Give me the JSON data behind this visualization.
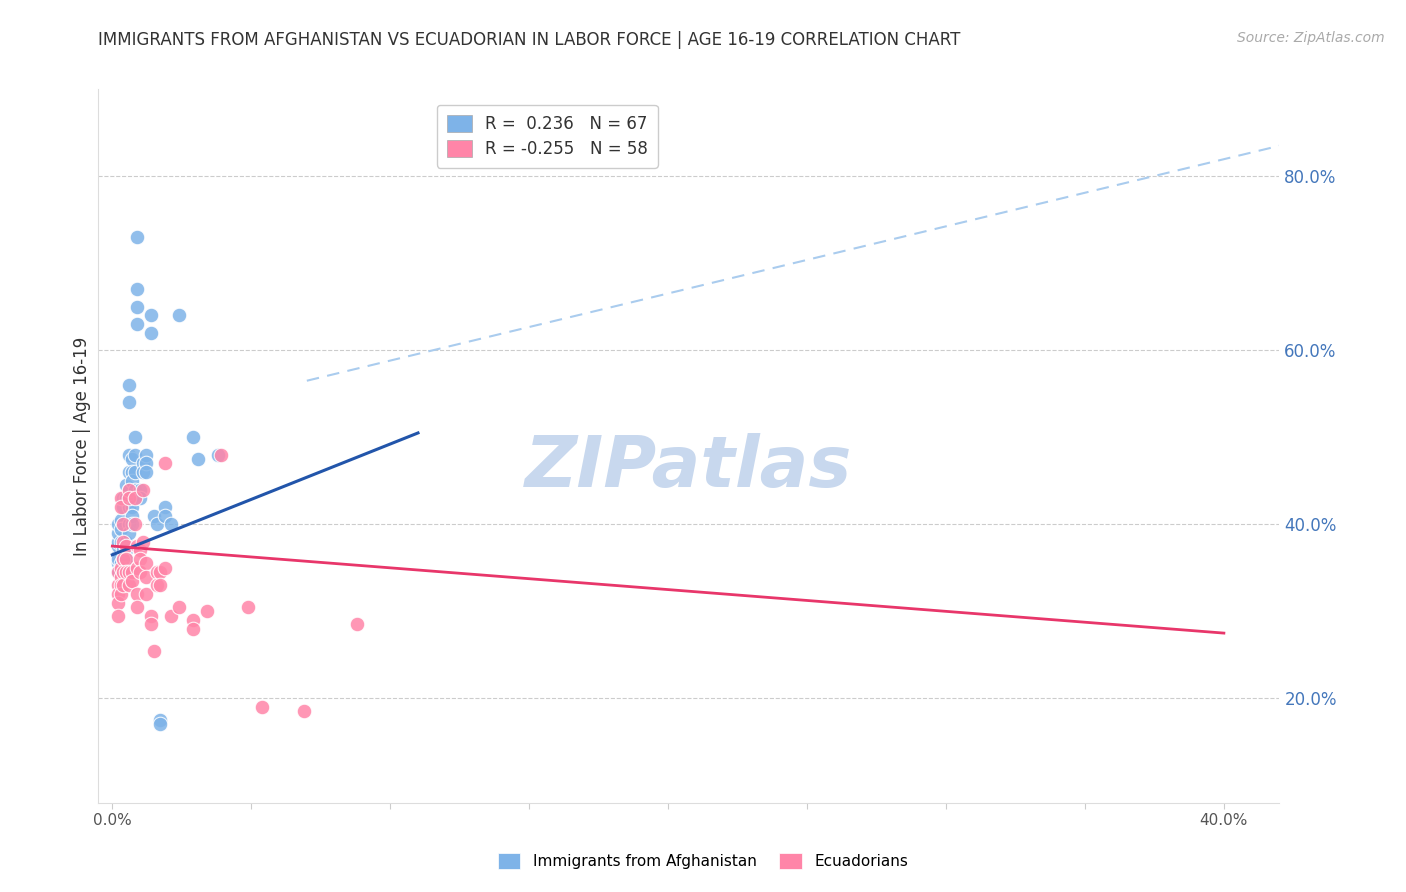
{
  "title": "IMMIGRANTS FROM AFGHANISTAN VS ECUADORIAN IN LABOR FORCE | AGE 16-19 CORRELATION CHART",
  "source": "Source: ZipAtlas.com",
  "ylabel": "In Labor Force | Age 16-19",
  "right_yticks": [
    0.2,
    0.4,
    0.6,
    0.8
  ],
  "right_yticklabels": [
    "20.0%",
    "40.0%",
    "60.0%",
    "80.0%"
  ],
  "xticks": [
    0.0,
    0.05,
    0.1,
    0.15,
    0.2,
    0.25,
    0.3,
    0.35,
    0.4
  ],
  "xlim": [
    -0.005,
    0.42
  ],
  "ylim": [
    0.08,
    0.9
  ],
  "afghanistan_color": "#7EB3E8",
  "ecuador_color": "#FF85A8",
  "blue_line_color": "#2255AA",
  "pink_line_color": "#E8366A",
  "dashed_line_color": "#AACCEE",
  "watermark_text": "ZIPatlas",
  "watermark_color": "#C8D8EE",
  "afghanistan_dots": [
    [
      0.002,
      0.365
    ],
    [
      0.002,
      0.355
    ],
    [
      0.002,
      0.375
    ],
    [
      0.002,
      0.38
    ],
    [
      0.002,
      0.39
    ],
    [
      0.002,
      0.4
    ],
    [
      0.002,
      0.345
    ],
    [
      0.002,
      0.36
    ],
    [
      0.003,
      0.405
    ],
    [
      0.003,
      0.38
    ],
    [
      0.003,
      0.395
    ],
    [
      0.003,
      0.355
    ],
    [
      0.004,
      0.42
    ],
    [
      0.004,
      0.43
    ],
    [
      0.004,
      0.375
    ],
    [
      0.004,
      0.36
    ],
    [
      0.004,
      0.345
    ],
    [
      0.004,
      0.37
    ],
    [
      0.005,
      0.445
    ],
    [
      0.005,
      0.43
    ],
    [
      0.005,
      0.38
    ],
    [
      0.005,
      0.37
    ],
    [
      0.005,
      0.36
    ],
    [
      0.005,
      0.35
    ],
    [
      0.006,
      0.56
    ],
    [
      0.006,
      0.54
    ],
    [
      0.006,
      0.48
    ],
    [
      0.006,
      0.46
    ],
    [
      0.006,
      0.44
    ],
    [
      0.006,
      0.42
    ],
    [
      0.006,
      0.4
    ],
    [
      0.006,
      0.39
    ],
    [
      0.007,
      0.475
    ],
    [
      0.007,
      0.46
    ],
    [
      0.007,
      0.45
    ],
    [
      0.007,
      0.43
    ],
    [
      0.007,
      0.42
    ],
    [
      0.007,
      0.41
    ],
    [
      0.007,
      0.4
    ],
    [
      0.008,
      0.5
    ],
    [
      0.008,
      0.48
    ],
    [
      0.008,
      0.46
    ],
    [
      0.008,
      0.44
    ],
    [
      0.009,
      0.73
    ],
    [
      0.009,
      0.67
    ],
    [
      0.009,
      0.65
    ],
    [
      0.009,
      0.63
    ],
    [
      0.01,
      0.44
    ],
    [
      0.01,
      0.43
    ],
    [
      0.011,
      0.47
    ],
    [
      0.011,
      0.46
    ],
    [
      0.012,
      0.48
    ],
    [
      0.012,
      0.47
    ],
    [
      0.012,
      0.46
    ],
    [
      0.014,
      0.64
    ],
    [
      0.014,
      0.62
    ],
    [
      0.015,
      0.41
    ],
    [
      0.016,
      0.4
    ],
    [
      0.017,
      0.175
    ],
    [
      0.017,
      0.17
    ],
    [
      0.019,
      0.42
    ],
    [
      0.019,
      0.41
    ],
    [
      0.021,
      0.4
    ],
    [
      0.024,
      0.64
    ],
    [
      0.029,
      0.5
    ],
    [
      0.031,
      0.475
    ],
    [
      0.038,
      0.48
    ]
  ],
  "ecuador_dots": [
    [
      0.002,
      0.345
    ],
    [
      0.002,
      0.33
    ],
    [
      0.002,
      0.32
    ],
    [
      0.002,
      0.31
    ],
    [
      0.002,
      0.295
    ],
    [
      0.003,
      0.43
    ],
    [
      0.003,
      0.42
    ],
    [
      0.003,
      0.35
    ],
    [
      0.003,
      0.34
    ],
    [
      0.003,
      0.33
    ],
    [
      0.003,
      0.32
    ],
    [
      0.004,
      0.4
    ],
    [
      0.004,
      0.38
    ],
    [
      0.004,
      0.36
    ],
    [
      0.004,
      0.345
    ],
    [
      0.004,
      0.33
    ],
    [
      0.005,
      0.375
    ],
    [
      0.005,
      0.36
    ],
    [
      0.005,
      0.345
    ],
    [
      0.006,
      0.44
    ],
    [
      0.006,
      0.43
    ],
    [
      0.006,
      0.345
    ],
    [
      0.006,
      0.33
    ],
    [
      0.007,
      0.345
    ],
    [
      0.007,
      0.335
    ],
    [
      0.008,
      0.43
    ],
    [
      0.008,
      0.4
    ],
    [
      0.009,
      0.375
    ],
    [
      0.009,
      0.35
    ],
    [
      0.009,
      0.32
    ],
    [
      0.009,
      0.305
    ],
    [
      0.01,
      0.37
    ],
    [
      0.01,
      0.36
    ],
    [
      0.01,
      0.345
    ],
    [
      0.011,
      0.44
    ],
    [
      0.011,
      0.38
    ],
    [
      0.012,
      0.355
    ],
    [
      0.012,
      0.34
    ],
    [
      0.012,
      0.32
    ],
    [
      0.014,
      0.295
    ],
    [
      0.014,
      0.285
    ],
    [
      0.015,
      0.255
    ],
    [
      0.016,
      0.345
    ],
    [
      0.016,
      0.33
    ],
    [
      0.017,
      0.345
    ],
    [
      0.017,
      0.33
    ],
    [
      0.019,
      0.47
    ],
    [
      0.019,
      0.35
    ],
    [
      0.021,
      0.295
    ],
    [
      0.024,
      0.305
    ],
    [
      0.029,
      0.29
    ],
    [
      0.029,
      0.28
    ],
    [
      0.034,
      0.3
    ],
    [
      0.039,
      0.48
    ],
    [
      0.049,
      0.305
    ],
    [
      0.054,
      0.19
    ],
    [
      0.069,
      0.185
    ],
    [
      0.088,
      0.285
    ]
  ],
  "afg_line_x": [
    0.0,
    0.11
  ],
  "afg_line_y": [
    0.365,
    0.505
  ],
  "ecu_line_x": [
    0.0,
    0.4
  ],
  "ecu_line_y": [
    0.375,
    0.275
  ],
  "dashed_line_x": [
    0.07,
    0.42
  ],
  "dashed_line_y": [
    0.565,
    0.835
  ],
  "legend_blue_label": "R =  0.236   N = 67",
  "legend_pink_label": "R = -0.255   N = 58",
  "legend_blue_color": "#7EB3E8",
  "legend_pink_color": "#FF85A8"
}
